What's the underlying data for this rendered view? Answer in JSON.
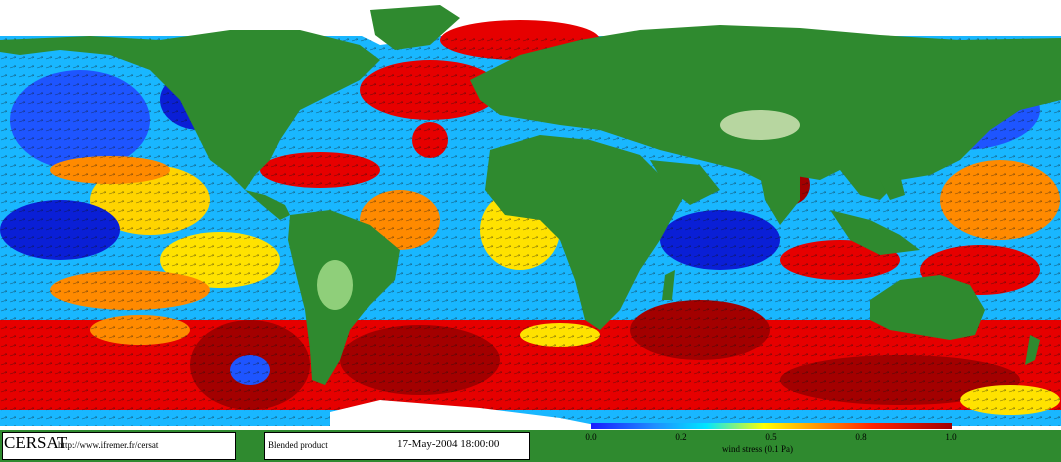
{
  "footer": {
    "brand": "CERSAT",
    "url": "http://www.ifremer.fr/cersat",
    "product": "Blended product",
    "date": "17-May-2004 18:00:00"
  },
  "colorbar": {
    "title": "wind stress (0.1 Pa)",
    "ticks": [
      "0.0",
      "0.2",
      "0.5",
      "0.8",
      "1.0"
    ],
    "tick_values": [
      0.0,
      0.2,
      0.5,
      0.8,
      1.0
    ],
    "range": [
      0.0,
      1.0
    ],
    "colors": [
      "#1a1aff",
      "#1e90ff",
      "#00e5ff",
      "#ffff00",
      "#ff9900",
      "#ff2200",
      "#a00000"
    ]
  },
  "map_style": {
    "land_color": "#2f8a2f",
    "ice_color": "#ffffff",
    "ocean_palette": [
      "#0a1fd6",
      "#1e7bff",
      "#19d6ff",
      "#ffe200",
      "#ff8a00",
      "#e60000",
      "#a30000"
    ]
  }
}
